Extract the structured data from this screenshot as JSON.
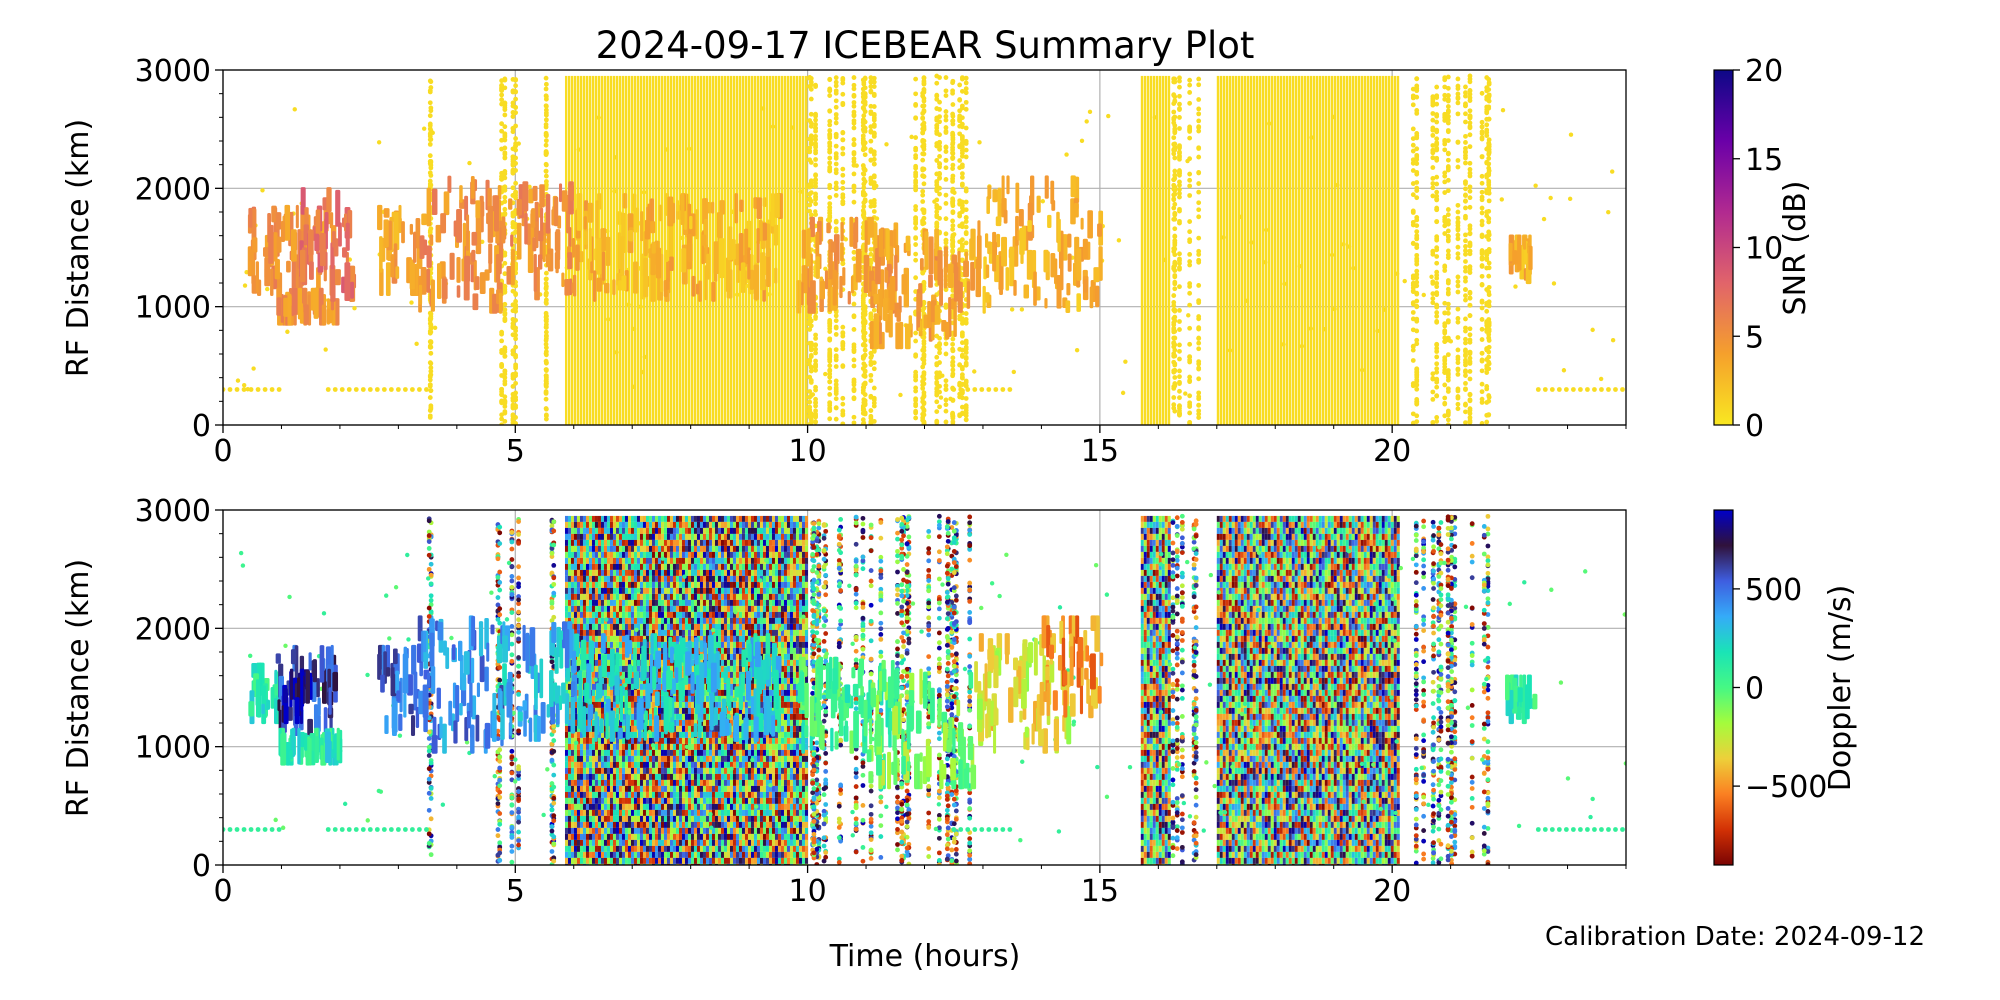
{
  "figure": {
    "title": "2024-09-17 ICEBEAR Summary Plot",
    "xlabel": "Time (hours)",
    "calibration_note": "Calibration Date: 2024-09-12"
  },
  "chart_data": [
    {
      "type": "scatter",
      "title": "",
      "xlabel": "",
      "ylabel": "RF Distance (km)",
      "xlim": [
        0,
        24
      ],
      "ylim": [
        0,
        3000
      ],
      "xticks": [
        0,
        5,
        10,
        15,
        20
      ],
      "yticks": [
        0,
        1000,
        2000,
        3000
      ],
      "grid": true,
      "colorbar": {
        "label": "SNR (dB)",
        "range": [
          0,
          20
        ],
        "ticks": [
          0,
          5,
          10,
          15,
          20
        ],
        "colors": [
          "#f9e721",
          "#f5a02c",
          "#e1646a",
          "#b12a90",
          "#6a00a8",
          "#0d0887"
        ]
      },
      "background_noise": {
        "range_km": [
          0,
          2950
        ],
        "color_value": 0.6,
        "dense_bands_hours": [
          [
            5.85,
            10.0
          ],
          [
            15.7,
            16.2
          ],
          [
            17.0,
            20.1
          ]
        ],
        "sparse_bands_hours": [
          [
            3.5,
            3.57
          ],
          [
            4.7,
            5.1
          ],
          [
            5.5,
            5.75
          ],
          [
            10.0,
            12.8
          ],
          [
            16.2,
            16.7
          ],
          [
            20.3,
            21.7
          ]
        ]
      },
      "echo_regions": [
        {
          "x": [
            0.4,
            1.9
          ],
          "range_km": [
            1150,
            1800
          ],
          "value": 5
        },
        {
          "x": [
            0.9,
            2.0
          ],
          "range_km": [
            900,
            1100
          ],
          "value": 5
        },
        {
          "x": [
            1.2,
            2.2
          ],
          "range_km": [
            1100,
            1950
          ],
          "value": 7
        },
        {
          "x": [
            2.6,
            3.4
          ],
          "range_km": [
            1150,
            1800
          ],
          "value": 4
        },
        {
          "x": [
            3.3,
            4.8
          ],
          "range_km": [
            1000,
            2050
          ],
          "value": 5
        },
        {
          "x": [
            4.5,
            6.0
          ],
          "range_km": [
            1100,
            2000
          ],
          "value": 5
        },
        {
          "x": [
            6.0,
            9.5
          ],
          "range_km": [
            1100,
            1900
          ],
          "value": 3
        },
        {
          "x": [
            9.8,
            11.5
          ],
          "range_km": [
            1000,
            1700
          ],
          "value": 4
        },
        {
          "x": [
            11.0,
            12.8
          ],
          "range_km": [
            700,
            1600
          ],
          "value": 4
        },
        {
          "x": [
            12.8,
            15.0
          ],
          "range_km": [
            1000,
            2050
          ],
          "value": 3
        },
        {
          "x": [
            21.9,
            22.4
          ],
          "range_km": [
            1250,
            1550
          ],
          "value": 3
        }
      ]
    },
    {
      "type": "scatter",
      "title": "",
      "xlabel": "Time (hours)",
      "ylabel": "RF Distance (km)",
      "xlim": [
        0,
        24
      ],
      "ylim": [
        0,
        3000
      ],
      "xticks": [
        0,
        5,
        10,
        15,
        20
      ],
      "yticks": [
        0,
        1000,
        2000,
        3000
      ],
      "grid": true,
      "colorbar": {
        "label": "Doppler (m/s)",
        "range": [
          -900,
          900
        ],
        "ticks": [
          -500,
          0,
          500
        ],
        "tick_labels": [
          "−500",
          "0",
          "500"
        ],
        "colors": [
          "#7a0403",
          "#d23105",
          "#fb8022",
          "#edd03a",
          "#a4fc3c",
          "#46f884",
          "#1ae4b6",
          "#35abf8",
          "#3e5ee0",
          "#30123b",
          "#0000c8"
        ]
      },
      "background_noise": {
        "range_km": [
          0,
          2950
        ],
        "color_value": "random",
        "dense_bands_hours": [
          [
            5.85,
            10.0
          ],
          [
            15.7,
            16.2
          ],
          [
            17.0,
            20.1
          ]
        ],
        "sparse_bands_hours": [
          [
            3.5,
            3.57
          ],
          [
            4.7,
            5.1
          ],
          [
            5.5,
            5.75
          ],
          [
            10.0,
            12.8
          ],
          [
            16.2,
            16.7
          ],
          [
            20.3,
            21.7
          ]
        ]
      },
      "echo_regions": [
        {
          "x": [
            0.4,
            0.9
          ],
          "range_km": [
            1250,
            1650
          ],
          "value": 120
        },
        {
          "x": [
            0.9,
            1.9
          ],
          "range_km": [
            1150,
            1800
          ],
          "value": 600
        },
        {
          "x": [
            1.0,
            1.5
          ],
          "range_km": [
            1250,
            1600
          ],
          "value": 850
        },
        {
          "x": [
            0.9,
            2.0
          ],
          "range_km": [
            900,
            1100
          ],
          "value": 150
        },
        {
          "x": [
            2.6,
            3.4
          ],
          "range_km": [
            1150,
            1800
          ],
          "value": 500
        },
        {
          "x": [
            3.3,
            4.8
          ],
          "range_km": [
            1000,
            2050
          ],
          "value": 450
        },
        {
          "x": [
            4.5,
            6.0
          ],
          "range_km": [
            1100,
            2000
          ],
          "value": 350
        },
        {
          "x": [
            6.0,
            9.5
          ],
          "range_km": [
            1100,
            1900
          ],
          "value": 250
        },
        {
          "x": [
            9.8,
            11.5
          ],
          "range_km": [
            1000,
            1700
          ],
          "value": 50
        },
        {
          "x": [
            11.0,
            12.8
          ],
          "range_km": [
            700,
            1600
          ],
          "value": -100
        },
        {
          "x": [
            12.8,
            14.5
          ],
          "range_km": [
            1000,
            1900
          ],
          "value": -300
        },
        {
          "x": [
            14.0,
            15.0
          ],
          "range_km": [
            1300,
            2050
          ],
          "value": -500
        },
        {
          "x": [
            21.9,
            22.4
          ],
          "range_km": [
            1250,
            1550
          ],
          "value": 100
        }
      ]
    }
  ]
}
